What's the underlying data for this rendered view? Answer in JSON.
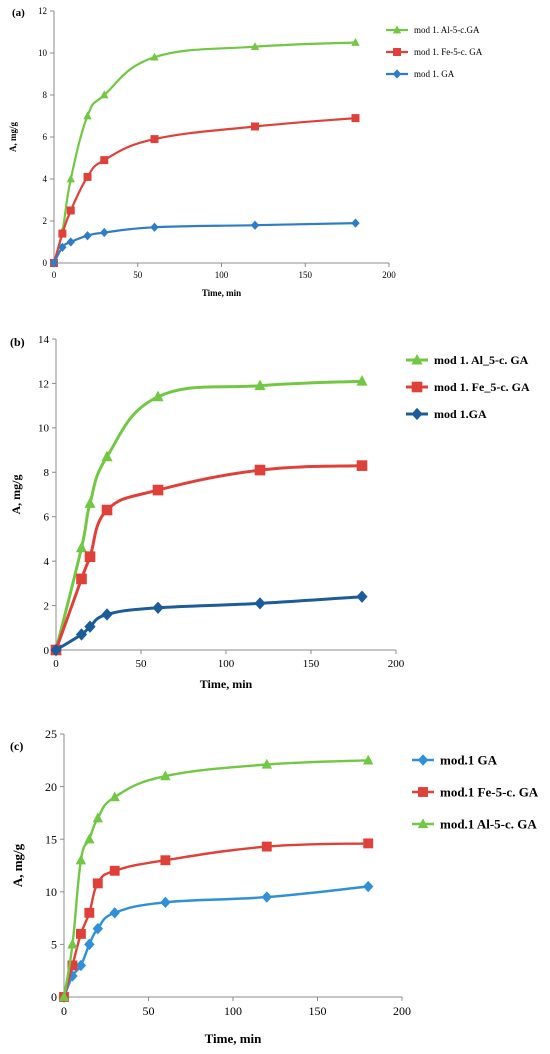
{
  "chart_data": [
    {
      "panel": "(a)",
      "type": "line",
      "xlabel": "Time, min",
      "ylabel": "A, mg/g",
      "xlim": [
        0,
        200
      ],
      "ylim": [
        0,
        12
      ],
      "xticks": [
        0,
        50,
        100,
        150,
        200
      ],
      "yticks": [
        0,
        2,
        4,
        6,
        8,
        10,
        12
      ],
      "legend_position": "top-right",
      "series": [
        {
          "name": "mod 1. Al-5-c.GA",
          "color": "#72c744",
          "marker": "triangle",
          "x": [
            0,
            5,
            10,
            20,
            30,
            60,
            120,
            180
          ],
          "y": [
            0,
            1.5,
            4.0,
            7.0,
            8.0,
            9.8,
            10.3,
            10.5
          ]
        },
        {
          "name": "mod 1. Fe-5-c. GA",
          "color": "#e0403a",
          "marker": "square",
          "x": [
            0,
            5,
            10,
            20,
            30,
            60,
            120,
            180
          ],
          "y": [
            0,
            1.4,
            2.5,
            4.1,
            4.9,
            5.9,
            6.5,
            6.9
          ]
        },
        {
          "name": "mod 1. GA",
          "color": "#2f7dc8",
          "marker": "diamond",
          "x": [
            0,
            5,
            10,
            20,
            30,
            60,
            120,
            180
          ],
          "y": [
            0,
            0.75,
            1.0,
            1.3,
            1.45,
            1.7,
            1.8,
            1.9
          ]
        }
      ]
    },
    {
      "panel": "(b)",
      "type": "line",
      "xlabel": "Time, min",
      "ylabel": "A, mg/g",
      "xlim": [
        0,
        200
      ],
      "ylim": [
        0,
        14
      ],
      "xticks": [
        0,
        50,
        100,
        150,
        200
      ],
      "yticks": [
        0,
        2,
        4,
        6,
        8,
        10,
        12,
        14
      ],
      "legend_position": "top-right",
      "series": [
        {
          "name": "mod 1. Al_5-c. GA",
          "color": "#72c744",
          "marker": "triangle",
          "x": [
            0,
            15,
            20,
            30,
            60,
            120,
            180
          ],
          "y": [
            0,
            4.6,
            6.6,
            8.7,
            11.4,
            11.9,
            12.1
          ]
        },
        {
          "name": "mod 1. Fe_5-c. GA",
          "color": "#e0403a",
          "marker": "square",
          "x": [
            0,
            15,
            20,
            30,
            60,
            120,
            180
          ],
          "y": [
            0,
            3.2,
            4.2,
            6.3,
            7.2,
            8.1,
            8.3
          ]
        },
        {
          "name": "mod 1.GA",
          "color": "#1c5c9a",
          "marker": "diamond",
          "x": [
            0,
            15,
            20,
            30,
            60,
            120,
            180
          ],
          "y": [
            0,
            0.7,
            1.05,
            1.6,
            1.9,
            2.1,
            2.4
          ]
        }
      ]
    },
    {
      "panel": "(c)",
      "type": "line",
      "xlabel": "Time, min",
      "ylabel": "A, mg/g",
      "xlim": [
        0,
        200
      ],
      "ylim": [
        0,
        25
      ],
      "xticks": [
        0,
        50,
        100,
        150,
        200
      ],
      "yticks": [
        0,
        5,
        10,
        15,
        20,
        25
      ],
      "legend_position": "top-right",
      "series": [
        {
          "name": "mod.1 GA",
          "color": "#2f8fd8",
          "marker": "diamond",
          "x": [
            0,
            5,
            10,
            15,
            20,
            30,
            60,
            120,
            180
          ],
          "y": [
            0,
            2,
            3,
            5,
            6.5,
            8,
            9,
            9.5,
            10.5
          ]
        },
        {
          "name": "mod.1 Fe-5-c. GA",
          "color": "#e0403a",
          "marker": "square",
          "x": [
            0,
            5,
            10,
            15,
            20,
            30,
            60,
            120,
            180
          ],
          "y": [
            0,
            3,
            6,
            8,
            10.8,
            12,
            13,
            14.3,
            14.6
          ]
        },
        {
          "name": "mod.1 Al-5-c. GA",
          "color": "#72c744",
          "marker": "triangle",
          "x": [
            0,
            5,
            10,
            15,
            20,
            30,
            60,
            120,
            180
          ],
          "y": [
            0,
            5,
            13,
            15,
            17,
            19,
            21,
            22.1,
            22.5
          ]
        }
      ]
    }
  ]
}
